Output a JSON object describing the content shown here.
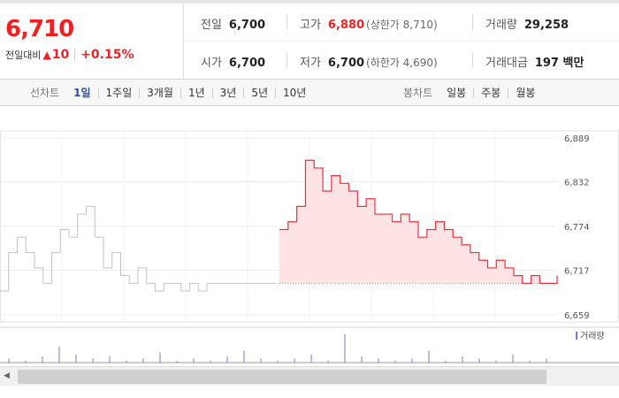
{
  "summary": {
    "price": "6,710",
    "change_label": "전일대비",
    "change_symbol": "▲",
    "change_value": "10",
    "change_percent": "+0.15%",
    "prev_close_label": "전일",
    "prev_close": "6,700",
    "high_label": "고가",
    "high": "6,880",
    "upper_limit": "(상한가 8,710)",
    "volume_label": "거래량",
    "volume": "29,258",
    "open_label": "시가",
    "open": "6,700",
    "low_label": "저가",
    "low": "6,700",
    "lower_limit": "(하한가 4,690)",
    "amount_label": "거래대금",
    "amount": "197 백만"
  },
  "tabs": {
    "line_title": "선차트",
    "line_periods": [
      "1일",
      "1주일",
      "3개월",
      "1년",
      "3년",
      "5년",
      "10년"
    ],
    "candle_title": "봉차트",
    "candle_periods": [
      "일봉",
      "주봉",
      "월봉"
    ]
  },
  "chart_data": {
    "type": "line",
    "y_ticks": [
      "6,889",
      "6,832",
      "6,774",
      "6,717",
      "6,659"
    ],
    "ylim": [
      6659,
      6889
    ],
    "legend": "거래량",
    "colors": {
      "today": "#e8323c",
      "today_fill": "#fde3e4",
      "previous": "#c2c2c2",
      "volume": "#8a6fc2",
      "grid": "#ececec"
    },
    "reference_price": 6700,
    "previous_series": [
      6690,
      6740,
      6760,
      6740,
      6720,
      6700,
      6740,
      6770,
      6760,
      6790,
      6800,
      6760,
      6720,
      6740,
      6710,
      6700,
      6720,
      6700,
      6690,
      6700,
      6700,
      6690,
      6700,
      6690,
      6700,
      6700,
      6700,
      6700,
      6700,
      6700,
      6700,
      6700,
      6700
    ],
    "today_series": [
      6770,
      6780,
      6800,
      6860,
      6850,
      6820,
      6840,
      6830,
      6820,
      6800,
      6810,
      6790,
      6790,
      6780,
      6790,
      6780,
      6760,
      6770,
      6780,
      6770,
      6760,
      6750,
      6740,
      6730,
      6720,
      6730,
      6720,
      6710,
      6700,
      6710,
      6700,
      6700,
      6710
    ],
    "volume": [
      2,
      1,
      3,
      8,
      4,
      2,
      3,
      1,
      2,
      5,
      1,
      2,
      1,
      3,
      6,
      2,
      1,
      2,
      4,
      1,
      14,
      3,
      2,
      1,
      2,
      6,
      1,
      3,
      2,
      1,
      4,
      1,
      2
    ]
  }
}
